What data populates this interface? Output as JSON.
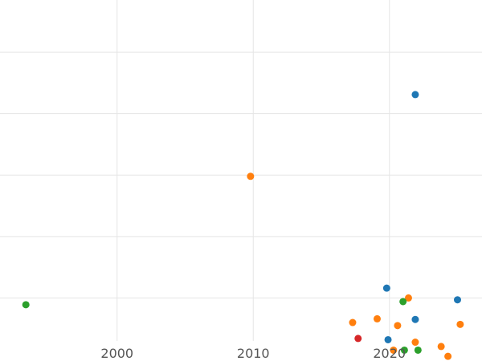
{
  "chart_data": {
    "type": "scatter",
    "title": "",
    "xlabel": "",
    "ylabel": "",
    "grid": true,
    "legend": "none",
    "xlim": [
      1991.4,
      2026.8
    ],
    "ylim": [
      0.3,
      5.85
    ],
    "x_ticks": [
      2000,
      2010,
      2020
    ],
    "x_tick_labels": [
      "2000",
      "2010",
      "2020"
    ],
    "y_gridlines": [
      1,
      2,
      3,
      4,
      5
    ],
    "colors": {
      "blue": "#1f77b4",
      "orange": "#ff7f0e",
      "green": "#2ca02c",
      "red": "#d62728",
      "grid": "#e5e5e5",
      "tick_text": "#555555"
    },
    "points": [
      {
        "x": 1993.3,
        "y": 0.89,
        "color": "green"
      },
      {
        "x": 2009.8,
        "y": 2.98,
        "color": "orange"
      },
      {
        "x": 2021.9,
        "y": 4.31,
        "color": "blue"
      },
      {
        "x": 2019.8,
        "y": 1.16,
        "color": "blue"
      },
      {
        "x": 2021.4,
        "y": 1.0,
        "color": "orange"
      },
      {
        "x": 2021.0,
        "y": 0.94,
        "color": "green"
      },
      {
        "x": 2025.0,
        "y": 0.97,
        "color": "blue"
      },
      {
        "x": 2021.9,
        "y": 0.65,
        "color": "blue"
      },
      {
        "x": 2019.1,
        "y": 0.66,
        "color": "orange"
      },
      {
        "x": 2017.3,
        "y": 0.6,
        "color": "orange"
      },
      {
        "x": 2020.6,
        "y": 0.55,
        "color": "orange"
      },
      {
        "x": 2025.2,
        "y": 0.57,
        "color": "orange"
      },
      {
        "x": 2017.7,
        "y": 0.34,
        "color": "red"
      },
      {
        "x": 2019.9,
        "y": 0.32,
        "color": "blue"
      },
      {
        "x": 2021.9,
        "y": 0.28,
        "color": "orange"
      },
      {
        "x": 2020.3,
        "y": 0.15,
        "color": "orange"
      },
      {
        "x": 2021.1,
        "y": 0.15,
        "color": "green"
      },
      {
        "x": 2022.1,
        "y": 0.15,
        "color": "green"
      },
      {
        "x": 2023.8,
        "y": 0.21,
        "color": "orange"
      },
      {
        "x": 2024.3,
        "y": 0.05,
        "color": "orange"
      }
    ]
  }
}
